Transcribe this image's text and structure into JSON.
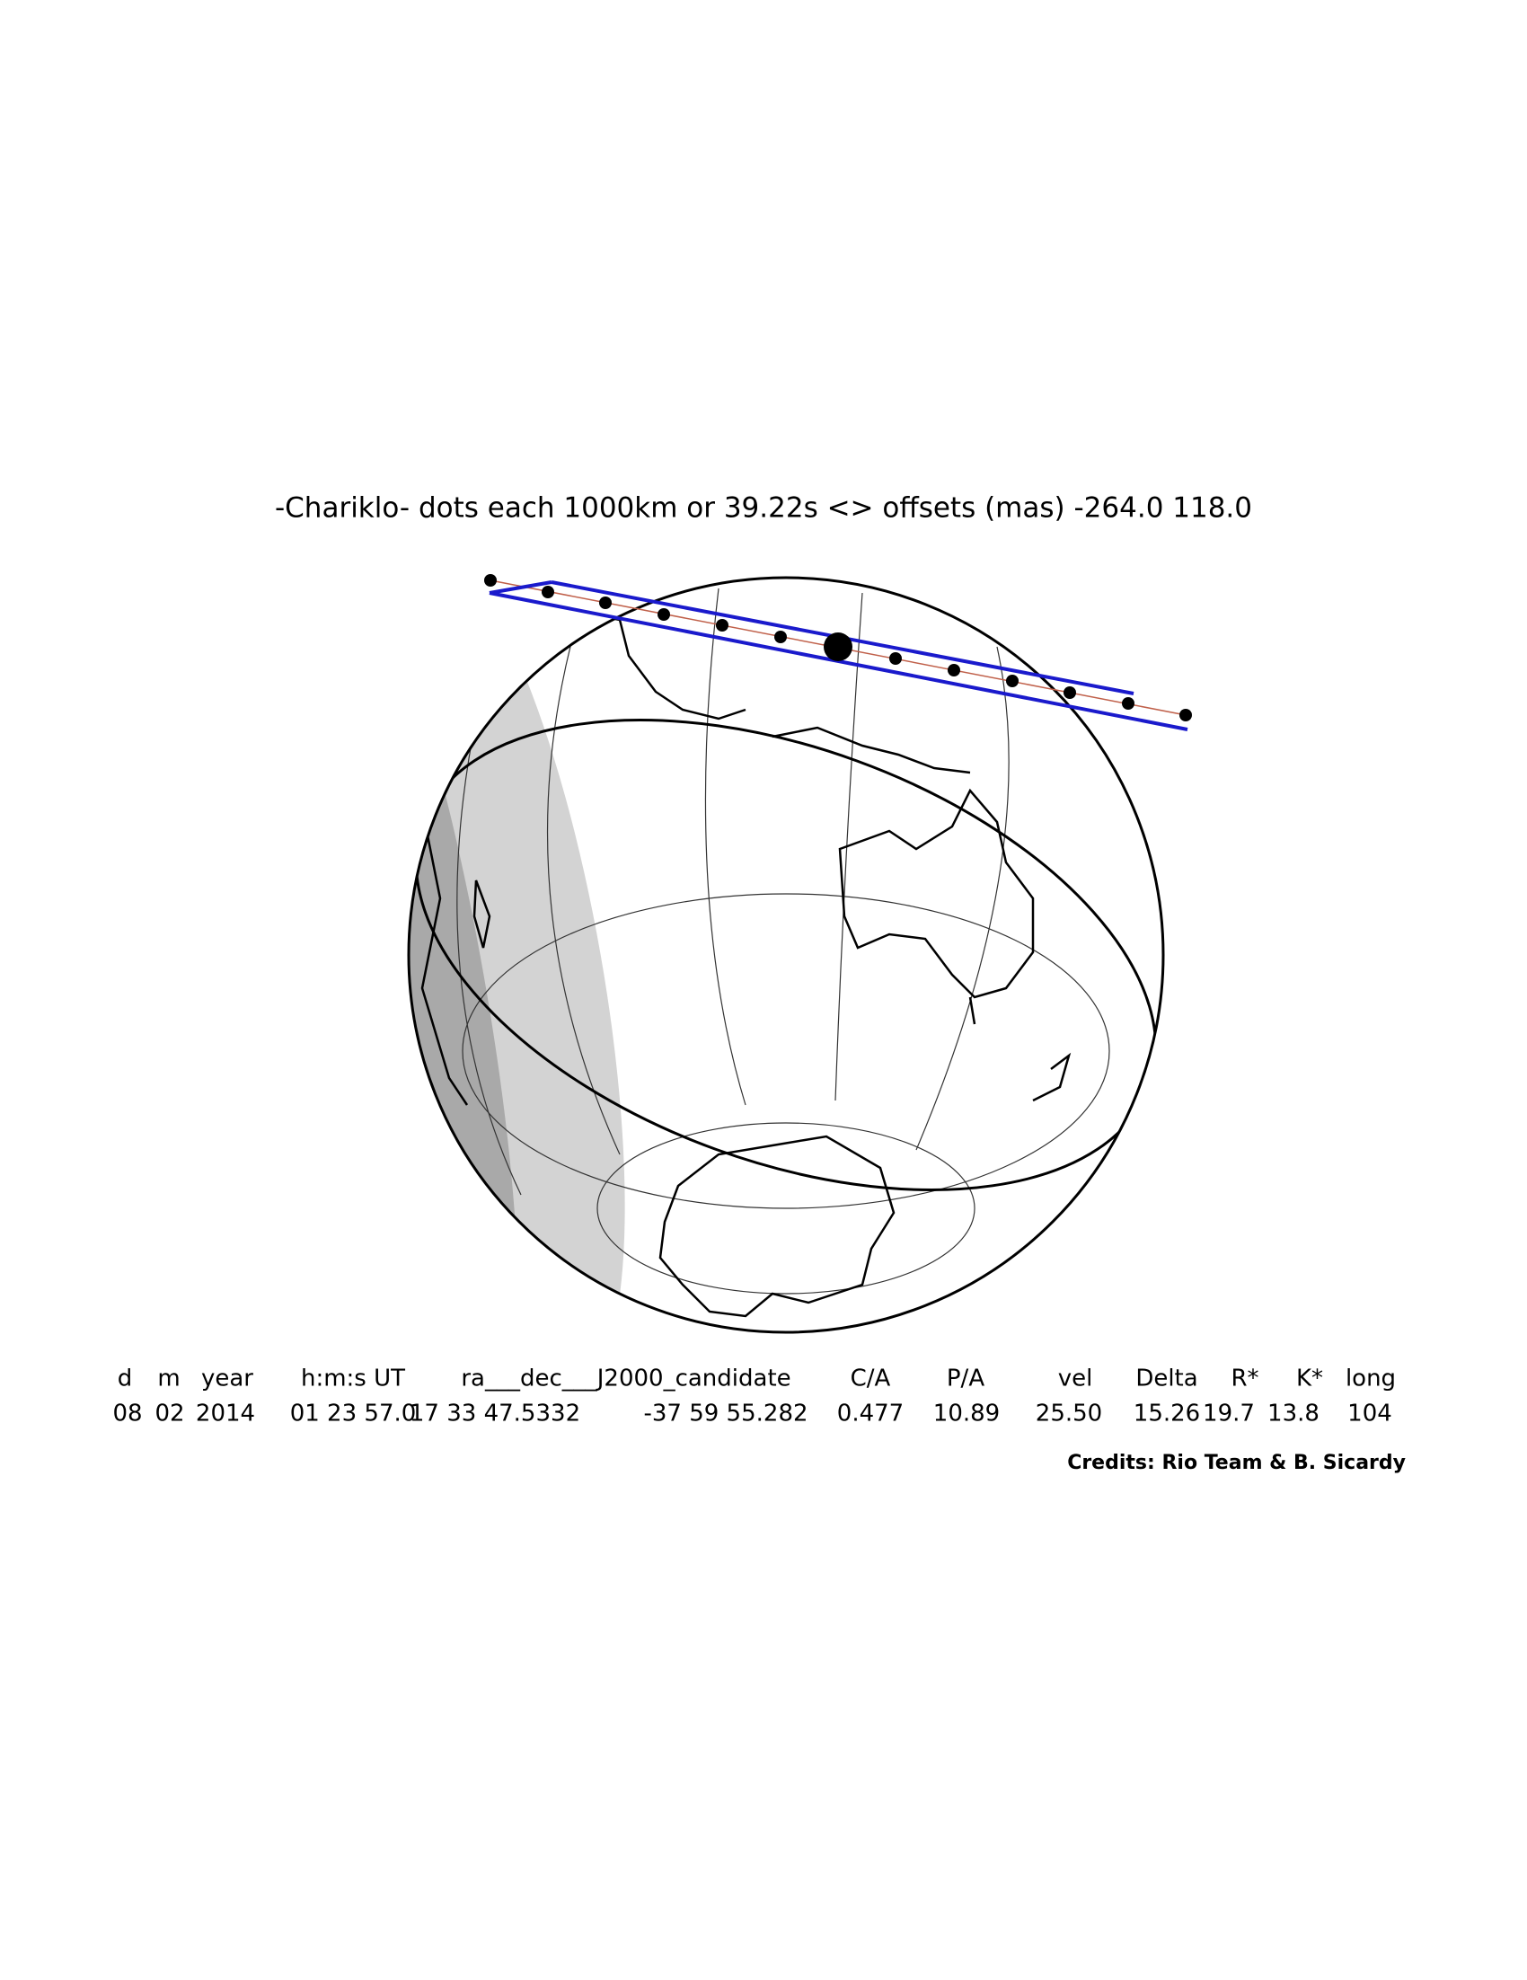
{
  "title": "-Chariklo-  dots each 1000km or 39.22s <> offsets (mas) -264.0   118.0",
  "table": {
    "header": [
      "d",
      "m",
      "year",
      "h:m:s UT",
      "ra___dec___J2000_candidate",
      "C/A",
      "P/A",
      "vel",
      "Delta",
      "R*",
      "K*",
      "long"
    ],
    "values": [
      "08",
      "02",
      "2014",
      "01 23 57.0",
      "17 33 47.5332",
      "-37 59 55.282",
      "0.477",
      "10.89",
      "25.50",
      "15.26",
      "19.7",
      "13.8",
      "104"
    ]
  },
  "credits": "Credits: Rio Team & B. Sicardy"
}
